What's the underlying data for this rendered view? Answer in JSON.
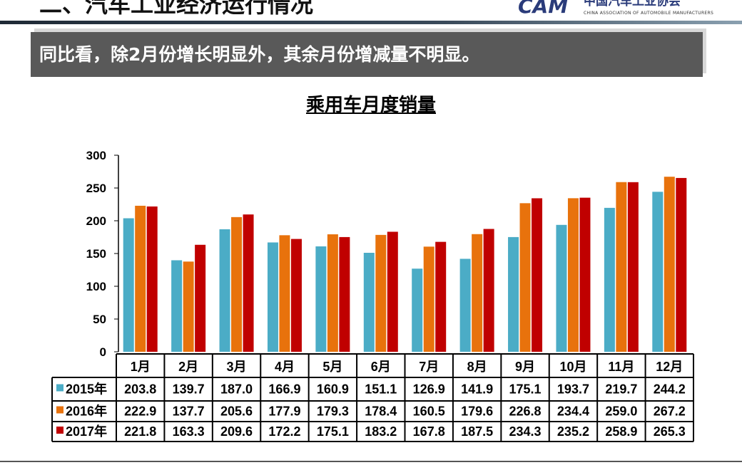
{
  "header": {
    "title": "二、汽车工业经济运行情况",
    "logo": "CAM",
    "org_name": "中国汽车工业协会",
    "org_name_en": "CHINA ASSOCIATION OF AUTOMOBILE MANUFACTURERS"
  },
  "banner": {
    "text": "同比看，除2月份增长明显外，其余月份增减量不明显。"
  },
  "chart_data": {
    "type": "bar",
    "title": "乘用车月度销量",
    "categories": [
      "1月",
      "2月",
      "3月",
      "4月",
      "5月",
      "6月",
      "7月",
      "8月",
      "9月",
      "10月",
      "11月",
      "12月"
    ],
    "ylim": [
      0,
      300
    ],
    "yticks": [
      0,
      50,
      100,
      150,
      200,
      250,
      300
    ],
    "grid": false,
    "legend": "data-table",
    "series": [
      {
        "name": "2015年",
        "color": "#4bacc6",
        "values": [
          203.8,
          139.7,
          187.0,
          166.9,
          160.9,
          151.1,
          126.9,
          141.9,
          175.1,
          193.7,
          219.7,
          244.2
        ]
      },
      {
        "name": "2016年",
        "color": "#e8720c",
        "values": [
          222.9,
          137.7,
          205.6,
          177.9,
          179.3,
          178.4,
          160.5,
          179.6,
          226.8,
          234.4,
          259.0,
          267.2
        ]
      },
      {
        "name": "2017年",
        "color": "#c00000",
        "values": [
          221.8,
          163.3,
          209.6,
          172.2,
          175.1,
          183.2,
          167.8,
          187.5,
          234.3,
          235.2,
          258.9,
          265.3
        ]
      }
    ]
  }
}
